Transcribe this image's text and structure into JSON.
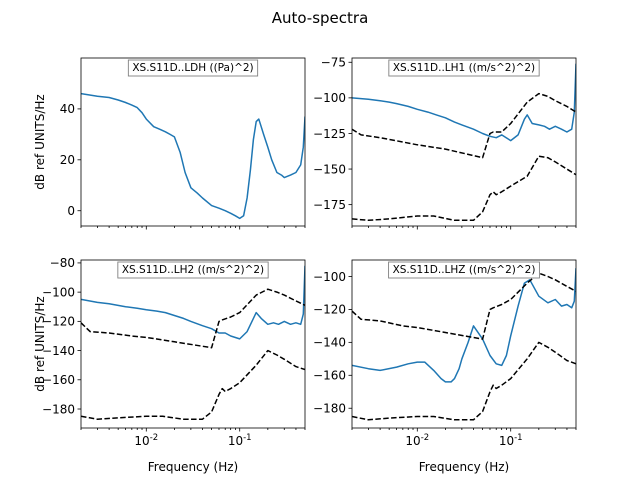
{
  "figure_title": "Auto-spectra",
  "chart_data": [
    {
      "type": "line",
      "panel": "top-left",
      "annotation": "XS.S11D..LDH ((Pa)^2)",
      "ylabel": "dB ref UNITS/Hz",
      "xlabel": "",
      "xscale": "log",
      "xlim": [
        0.002,
        0.5
      ],
      "ylim": [
        -6,
        60
      ],
      "yticks": [
        0,
        20,
        40
      ],
      "xticklabels_shown": false,
      "series": [
        {
          "color": "#1f77b4",
          "style": "solid",
          "x": [
            0.002,
            0.003,
            0.004,
            0.005,
            0.006,
            0.007,
            0.008,
            0.009,
            0.01,
            0.012,
            0.014,
            0.016,
            0.018,
            0.02,
            0.023,
            0.026,
            0.03,
            0.035,
            0.04,
            0.05,
            0.06,
            0.07,
            0.08,
            0.09,
            0.1,
            0.11,
            0.12,
            0.13,
            0.14,
            0.15,
            0.16,
            0.17,
            0.18,
            0.2,
            0.22,
            0.25,
            0.28,
            0.3,
            0.35,
            0.4,
            0.45,
            0.48,
            0.5
          ],
          "y": [
            46,
            45,
            44.5,
            43.5,
            42.5,
            41.5,
            40.5,
            38.5,
            36,
            33,
            32,
            31,
            30,
            29,
            23,
            15,
            9,
            7,
            5,
            2,
            1,
            0,
            -1,
            -2,
            -3,
            -2,
            5,
            16,
            28,
            35,
            36,
            33,
            30,
            25,
            20,
            15,
            14,
            13,
            14,
            15,
            18,
            25,
            37
          ]
        }
      ]
    },
    {
      "type": "line",
      "panel": "top-right",
      "annotation": "XS.S11D..LH1 ((m/s^2)^2)",
      "ylabel": "",
      "xlabel": "",
      "xscale": "log",
      "xlim": [
        0.002,
        0.5
      ],
      "ylim": [
        -190,
        -72
      ],
      "yticks": [
        -175,
        -150,
        -125,
        -100,
        -75
      ],
      "xticklabels_shown": false,
      "series": [
        {
          "color": "#1f77b4",
          "style": "solid",
          "x": [
            0.002,
            0.003,
            0.004,
            0.005,
            0.006,
            0.008,
            0.01,
            0.013,
            0.016,
            0.02,
            0.025,
            0.03,
            0.04,
            0.05,
            0.06,
            0.07,
            0.08,
            0.1,
            0.12,
            0.14,
            0.15,
            0.17,
            0.2,
            0.23,
            0.26,
            0.3,
            0.35,
            0.4,
            0.45,
            0.48,
            0.5
          ],
          "y": [
            -100,
            -101,
            -102,
            -103,
            -104,
            -106,
            -108,
            -110,
            -112,
            -114,
            -117,
            -119,
            -122,
            -125,
            -127,
            -128,
            -126,
            -130,
            -126,
            -115,
            -112,
            -118,
            -119,
            -120,
            -122,
            -120,
            -122,
            -124,
            -122,
            -110,
            -76
          ]
        },
        {
          "color": "#000000",
          "style": "dashed",
          "x": [
            0.002,
            0.0025,
            0.004,
            0.007,
            0.01,
            0.02,
            0.05,
            0.06,
            0.065,
            0.08,
            0.1,
            0.15,
            0.2,
            0.25,
            0.3,
            0.4,
            0.5
          ],
          "y": [
            -122,
            -126,
            -128,
            -131,
            -133,
            -136,
            -142,
            -125,
            -124,
            -124,
            -118,
            -103,
            -97,
            -99,
            -102,
            -106,
            -110
          ]
        },
        {
          "color": "#000000",
          "style": "dashed",
          "x": [
            0.002,
            0.003,
            0.005,
            0.01,
            0.015,
            0.025,
            0.04,
            0.05,
            0.06,
            0.065,
            0.07,
            0.08,
            0.1,
            0.15,
            0.2,
            0.25,
            0.3,
            0.4,
            0.5
          ],
          "y": [
            -185,
            -186,
            -185,
            -183,
            -183,
            -186,
            -186,
            -180,
            -168,
            -166,
            -168,
            -166,
            -162,
            -155,
            -141,
            -142,
            -145,
            -150,
            -154
          ]
        }
      ]
    },
    {
      "type": "line",
      "panel": "bottom-left",
      "annotation": "XS.S11D..LH2 ((m/s^2)^2)",
      "ylabel": "dB ref UNITS/Hz",
      "xlabel": "Frequency (Hz)",
      "xscale": "log",
      "xlim": [
        0.002,
        0.5
      ],
      "ylim": [
        -193,
        -78
      ],
      "yticks": [
        -180,
        -160,
        -140,
        -120,
        -100,
        -80
      ],
      "xticklabels": [
        "10^-2",
        "10^-1"
      ],
      "series": [
        {
          "color": "#1f77b4",
          "style": "solid",
          "x": [
            0.002,
            0.003,
            0.004,
            0.006,
            0.008,
            0.01,
            0.013,
            0.016,
            0.02,
            0.025,
            0.03,
            0.04,
            0.05,
            0.06,
            0.07,
            0.08,
            0.1,
            0.12,
            0.14,
            0.15,
            0.17,
            0.2,
            0.23,
            0.26,
            0.3,
            0.35,
            0.4,
            0.45,
            0.48,
            0.5
          ],
          "y": [
            -105,
            -107,
            -108,
            -110,
            -111,
            -112,
            -113,
            -114,
            -116,
            -118,
            -120,
            -123,
            -125,
            -128,
            -128,
            -130,
            -132,
            -127,
            -118,
            -114,
            -118,
            -122,
            -121,
            -122,
            -120,
            -122,
            -121,
            -122,
            -115,
            -82
          ]
        },
        {
          "color": "#000000",
          "style": "dashed",
          "x": [
            0.002,
            0.0025,
            0.004,
            0.007,
            0.01,
            0.02,
            0.05,
            0.06,
            0.065,
            0.08,
            0.1,
            0.15,
            0.2,
            0.25,
            0.3,
            0.4,
            0.5
          ],
          "y": [
            -121,
            -127,
            -128,
            -130,
            -131,
            -134,
            -138,
            -120,
            -119,
            -117,
            -114,
            -102,
            -98,
            -100,
            -102,
            -106,
            -109
          ]
        },
        {
          "color": "#000000",
          "style": "dashed",
          "x": [
            0.002,
            0.003,
            0.005,
            0.01,
            0.015,
            0.025,
            0.04,
            0.05,
            0.06,
            0.065,
            0.07,
            0.08,
            0.1,
            0.15,
            0.2,
            0.25,
            0.3,
            0.4,
            0.5
          ],
          "y": [
            -185,
            -187,
            -186,
            -185,
            -185,
            -187,
            -187,
            -182,
            -170,
            -166,
            -168,
            -166,
            -162,
            -150,
            -140,
            -143,
            -146,
            -151,
            -153
          ]
        }
      ]
    },
    {
      "type": "line",
      "panel": "bottom-right",
      "annotation": "XS.S11D..LHZ ((m/s^2)^2)",
      "ylabel": "",
      "xlabel": "Frequency (Hz)",
      "xscale": "log",
      "xlim": [
        0.002,
        0.5
      ],
      "ylim": [
        -192,
        -90
      ],
      "yticks": [
        -180,
        -160,
        -140,
        -120,
        -100
      ],
      "xticklabels": [
        "10^-2",
        "10^-1"
      ],
      "series": [
        {
          "color": "#1f77b4",
          "style": "solid",
          "x": [
            0.002,
            0.003,
            0.004,
            0.006,
            0.008,
            0.01,
            0.012,
            0.015,
            0.018,
            0.02,
            0.023,
            0.025,
            0.028,
            0.03,
            0.035,
            0.04,
            0.05,
            0.06,
            0.07,
            0.08,
            0.09,
            0.1,
            0.12,
            0.14,
            0.16,
            0.2,
            0.25,
            0.3,
            0.35,
            0.4,
            0.45,
            0.48,
            0.5
          ],
          "y": [
            -154,
            -156,
            -157,
            -155,
            -153,
            -152,
            -152,
            -157,
            -162,
            -164,
            -164,
            -162,
            -156,
            -150,
            -140,
            -130,
            -138,
            -148,
            -153,
            -154,
            -148,
            -136,
            -118,
            -104,
            -102,
            -112,
            -116,
            -114,
            -118,
            -117,
            -119,
            -115,
            -95
          ]
        },
        {
          "color": "#000000",
          "style": "dashed",
          "x": [
            0.002,
            0.0025,
            0.004,
            0.007,
            0.01,
            0.02,
            0.05,
            0.06,
            0.065,
            0.08,
            0.1,
            0.15,
            0.2,
            0.25,
            0.3,
            0.4,
            0.5
          ],
          "y": [
            -121,
            -126,
            -127,
            -130,
            -131,
            -134,
            -138,
            -120,
            -119,
            -117,
            -114,
            -104,
            -98,
            -100,
            -102,
            -106,
            -109
          ]
        },
        {
          "color": "#000000",
          "style": "dashed",
          "x": [
            0.002,
            0.003,
            0.005,
            0.01,
            0.015,
            0.025,
            0.04,
            0.05,
            0.06,
            0.065,
            0.07,
            0.08,
            0.1,
            0.15,
            0.2,
            0.25,
            0.3,
            0.4,
            0.5
          ],
          "y": [
            -185,
            -187,
            -186,
            -185,
            -185,
            -187,
            -187,
            -182,
            -170,
            -166,
            -168,
            -166,
            -162,
            -150,
            -140,
            -143,
            -146,
            -151,
            -153
          ]
        }
      ]
    }
  ]
}
